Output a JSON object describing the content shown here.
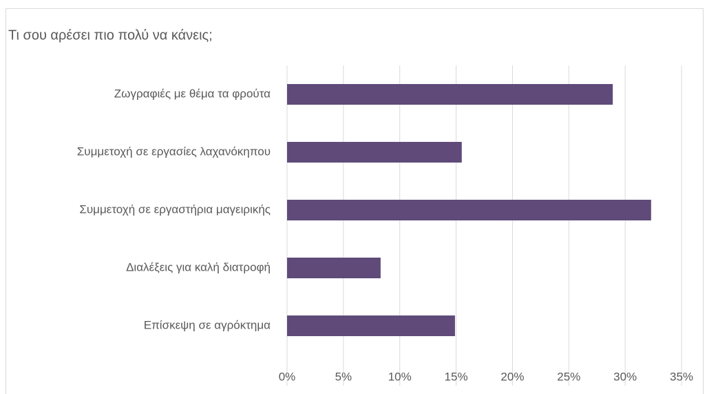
{
  "chart_data": {
    "type": "bar",
    "orientation": "horizontal",
    "title": "Τι σου αρέσει πιο πολύ να κάνεις;",
    "categories": [
      "Ζωγραφιές με θέμα τα φρούτα",
      "Συμμετοχή σε εργασίες λαχανόκηπου",
      "Συμμετοχή σε εργαστήρια μαγειρικής",
      "Διαλέξεις για καλή διατροφή",
      "Επίσκεψη σε αγρόκτημα"
    ],
    "values": [
      28.9,
      15.5,
      32.3,
      8.3,
      14.9
    ],
    "color": "#5f4a7a",
    "xlim": [
      0,
      35
    ],
    "xticks": [
      {
        "value": 0,
        "label": "0%"
      },
      {
        "value": 5,
        "label": "5%"
      },
      {
        "value": 10,
        "label": "10%"
      },
      {
        "value": 15,
        "label": "15%"
      },
      {
        "value": 20,
        "label": "20%"
      },
      {
        "value": 25,
        "label": "25%"
      },
      {
        "value": 30,
        "label": "30%"
      },
      {
        "value": 35,
        "label": "35%"
      }
    ],
    "grid": true
  }
}
